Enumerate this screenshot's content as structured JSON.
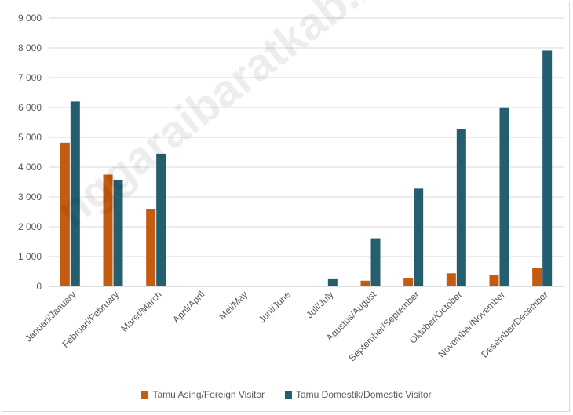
{
  "chart_data": {
    "type": "bar",
    "title": "",
    "xlabel": "",
    "ylabel": "",
    "ylim": [
      0,
      9000
    ],
    "yticks": [
      "0",
      "1 000",
      "2 000",
      "3 000",
      "4 000",
      "5 000",
      "6 000",
      "7 000",
      "8 000",
      "9 000"
    ],
    "categories": [
      "Januari/January",
      "Februari/February",
      "Maret/March",
      "April/April",
      "Mei/May",
      "Juni/June",
      "Juli/July",
      "Agustus/August",
      "September/September",
      "Oktober/October",
      "November/November",
      "Desember/December"
    ],
    "series": [
      {
        "name": "Tamu Asing/Foreign Visitor",
        "color": "#c55a11",
        "values": [
          4820,
          3750,
          2600,
          0,
          0,
          0,
          0,
          190,
          270,
          440,
          380,
          610
        ]
      },
      {
        "name": "Tamu Domestik/Domestic Visitor",
        "color": "#255e6f",
        "values": [
          6200,
          3580,
          4450,
          0,
          0,
          0,
          240,
          1590,
          3280,
          5270,
          5980,
          7910
        ]
      }
    ],
    "grid": true,
    "legend": "bottom"
  },
  "watermark": "nggaraibaratkab.bps.go.id"
}
